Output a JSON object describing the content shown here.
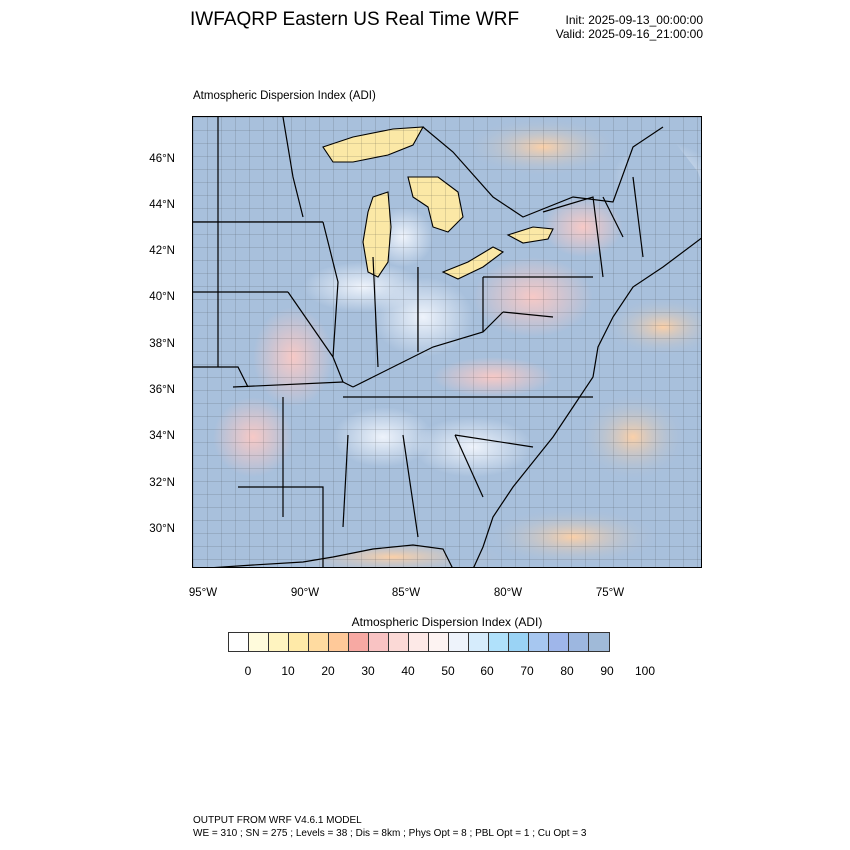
{
  "header": {
    "title": "IWFAQRP Eastern US Real Time WRF",
    "init": "Init: 2025-09-13_00:00:00",
    "valid": "Valid: 2025-09-16_21:00:00"
  },
  "plot": {
    "subtitle": "Atmospheric Dispersion Index   (ADI)",
    "lat_labels": [
      "46°N",
      "44°N",
      "42°N",
      "40°N",
      "38°N",
      "36°N",
      "34°N",
      "32°N",
      "30°N"
    ],
    "lon_labels": [
      "95°W",
      "90°W",
      "85°W",
      "80°W",
      "75°W"
    ]
  },
  "colorbar": {
    "title": "Atmospheric Dispersion Index  (ADI)",
    "tick_labels": [
      "0",
      "10",
      "20",
      "30",
      "40",
      "50",
      "60",
      "70",
      "80",
      "90",
      "100"
    ],
    "colors": [
      "#ffffff",
      "#fffbdc",
      "#fff4c0",
      "#ffeaa8",
      "#ffdba0",
      "#ffc999",
      "#f7a9a3",
      "#f9c3c3",
      "#fbd9d6",
      "#fde9e7",
      "#fdf3f2",
      "#eef3fb",
      "#d6ecfc",
      "#b0e1fb",
      "#9ad3f5",
      "#a7c7f0",
      "#9fb6ea",
      "#9db7e0",
      "#a0bad8"
    ]
  },
  "colors": {
    "land_base": "#a8c0dc",
    "water": "#a8c0dc",
    "lake": "#fbe8a6",
    "ocean_warm": "#fde3c4"
  },
  "footer": {
    "line1": "OUTPUT FROM WRF V4.6.1 MODEL",
    "line2": "WE = 310 ; SN = 275 ; Levels = 38 ; Dis = 8km ; Phys Opt = 8 ; PBL Opt = 1 ; Cu Opt = 3"
  }
}
